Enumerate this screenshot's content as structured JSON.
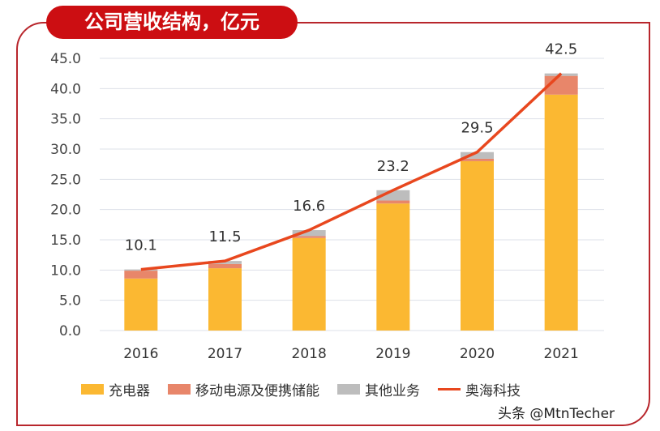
{
  "chart_data": {
    "type": "bar",
    "title": "公司营收结构，亿元",
    "categories": [
      "2016",
      "2017",
      "2018",
      "2019",
      "2020",
      "2021"
    ],
    "ylim": [
      0,
      45
    ],
    "yticks": [
      "0.0",
      "5.0",
      "10.0",
      "15.0",
      "20.0",
      "25.0",
      "30.0",
      "35.0",
      "40.0",
      "45.0"
    ],
    "grid": true,
    "legend_position": "bottom",
    "stacked": true,
    "series": [
      {
        "name": "充电器",
        "color": "#fbb832",
        "values": [
          8.6,
          10.3,
          15.3,
          21.0,
          28.0,
          39.0
        ]
      },
      {
        "name": "移动电源及便携储能",
        "color": "#e8866a",
        "values": [
          1.3,
          0.7,
          0.3,
          0.5,
          0.4,
          3.1
        ]
      },
      {
        "name": "其他业务",
        "color": "#bdbdbd",
        "values": [
          0.2,
          0.5,
          1.0,
          1.7,
          1.1,
          0.4
        ]
      }
    ],
    "line_series": {
      "name": "奥海科技",
      "color": "#e8471e",
      "values": [
        10.1,
        11.5,
        16.6,
        23.2,
        29.5,
        42.5
      ]
    },
    "data_labels": [
      "10.1",
      "11.5",
      "16.6",
      "23.2",
      "29.5",
      "42.5"
    ]
  },
  "watermark": "头条 @MtnTecher"
}
